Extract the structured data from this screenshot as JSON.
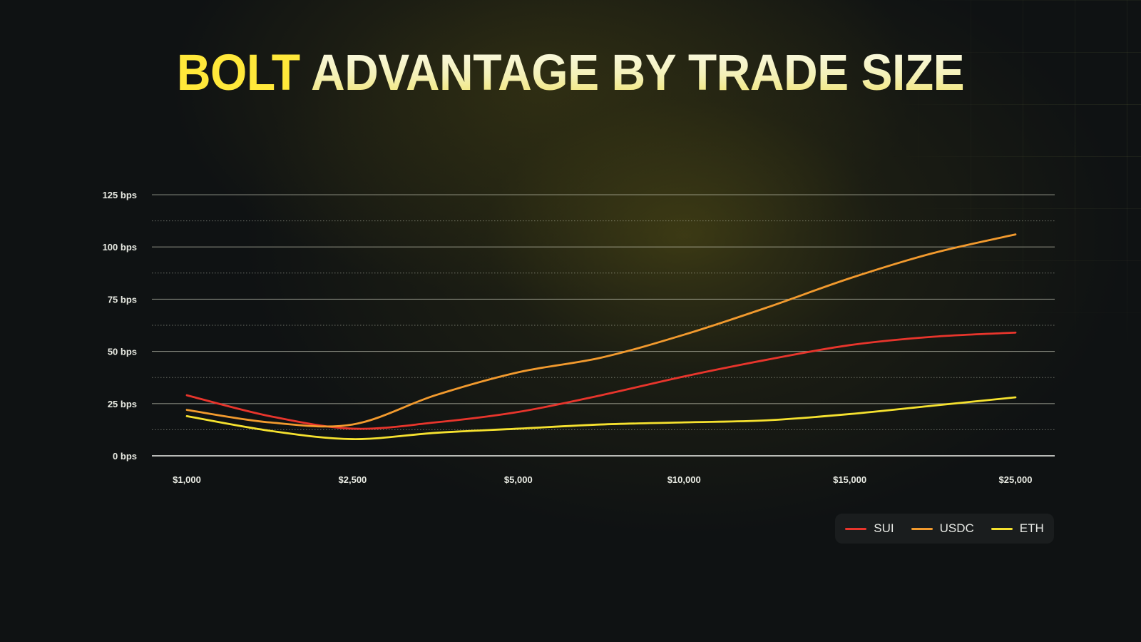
{
  "title": {
    "highlight": "BOLT",
    "rest": "ADVANTAGE BY TRADE SIZE"
  },
  "colors": {
    "background": "#0f1213",
    "title_highlight": "#ffe83a",
    "sui": "#e8352c",
    "usdc": "#f29a2e",
    "eth": "#f5e12f"
  },
  "chart_data": {
    "type": "line",
    "title": "BOLT ADVANTAGE BY TRADE SIZE",
    "xlabel": "",
    "ylabel": "",
    "categories": [
      "$1,000",
      "$2,500",
      "$5,000",
      "$10,000",
      "$15,000",
      "$25,000"
    ],
    "y_ticks": [
      "0 bps",
      "25 bps",
      "50 bps",
      "75 bps",
      "100 bps",
      "125 bps"
    ],
    "ylim": [
      0,
      125
    ],
    "grid": true,
    "legend_position": "bottom-right",
    "series": [
      {
        "name": "SUI",
        "color": "#e8352c",
        "x": [
          0,
          0.5,
          1,
          1.5,
          2,
          2.5,
          3,
          3.5,
          4,
          4.5,
          5
        ],
        "values": [
          29,
          19,
          13,
          16,
          21,
          29,
          38,
          46,
          53,
          57,
          59
        ]
      },
      {
        "name": "USDC",
        "color": "#f29a2e",
        "x": [
          0,
          0.5,
          1,
          1.5,
          2,
          2.5,
          3,
          3.5,
          4,
          4.5,
          5
        ],
        "values": [
          22,
          16,
          15,
          29,
          40,
          47,
          58,
          71,
          85,
          97,
          106
        ]
      },
      {
        "name": "ETH",
        "color": "#f5e12f",
        "x": [
          0,
          0.5,
          1,
          1.5,
          2,
          2.5,
          3,
          3.5,
          4,
          4.5,
          5
        ],
        "values": [
          19,
          12,
          8,
          11,
          13,
          15,
          16,
          17,
          20,
          24,
          28
        ]
      }
    ]
  }
}
